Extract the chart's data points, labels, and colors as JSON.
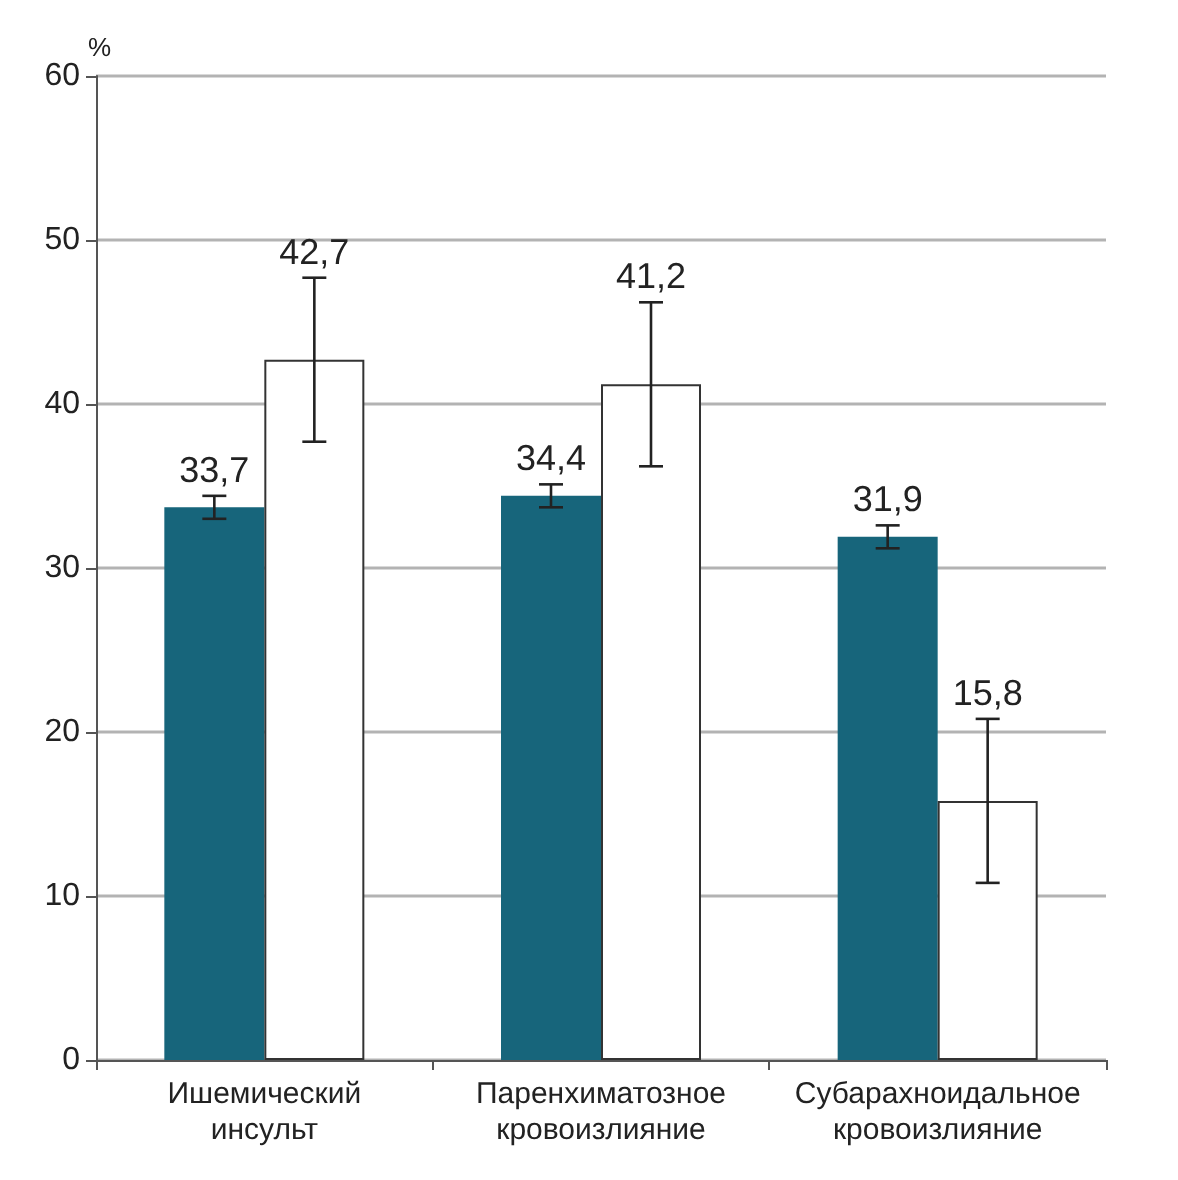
{
  "chart_data": {
    "type": "bar",
    "ylabel": "%",
    "categories": [
      "Ишемический инсульт",
      "Паренхиматозное кровоизлияние",
      "Субарахноидальное кровоизлияние"
    ],
    "series": [
      {
        "color": "#17657b",
        "values": [
          33.7,
          34.4,
          31.9
        ],
        "errors": [
          0.7,
          0.7,
          0.7
        ],
        "value_labels": [
          "33,7",
          "34,4",
          "31,9"
        ]
      },
      {
        "color": "#ffffff",
        "values": [
          42.7,
          41.2,
          15.8
        ],
        "errors": [
          5,
          5,
          5
        ],
        "value_labels": [
          "42,7",
          "41,2",
          "15,8"
        ]
      }
    ],
    "ylim": [
      0,
      60
    ],
    "yticks": [
      0,
      10,
      20,
      30,
      40,
      50,
      60
    ],
    "grid": "y"
  }
}
